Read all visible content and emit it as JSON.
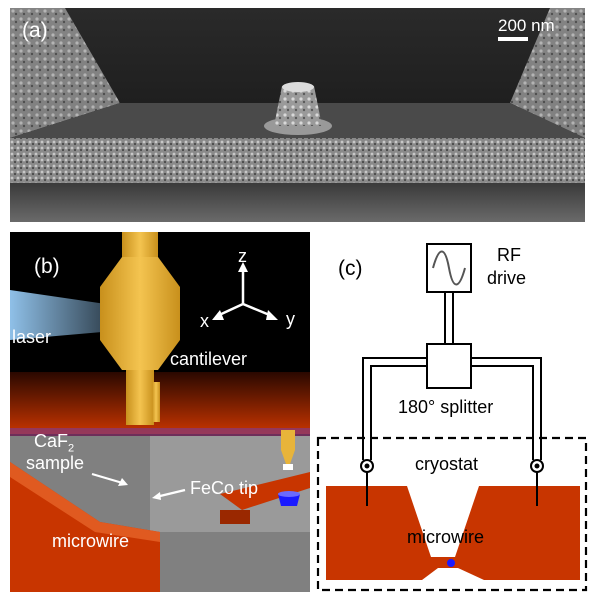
{
  "panel_a": {
    "label": "(a)",
    "scalebar_label": "200 nm"
  },
  "panel_b": {
    "label": "(b)",
    "axis_z": "z",
    "axis_x": "x",
    "axis_y": "y",
    "laser": "laser",
    "cantilever": "cantilever",
    "caf2_main": "CaF",
    "caf2_sub": "2",
    "sample": "sample",
    "feco_tip": "FeCo tip",
    "microwire": "microwire"
  },
  "panel_c": {
    "label": "(c)",
    "rf_line1": "RF",
    "rf_line2": "drive",
    "splitter": "180° splitter",
    "cryostat": "cryostat",
    "microwire": "microwire"
  },
  "colors": {
    "microwire": "#c83500",
    "cantilever": "#e8b43a",
    "laser": "#8fc0e8",
    "sample_dot": "#1a1aff"
  }
}
